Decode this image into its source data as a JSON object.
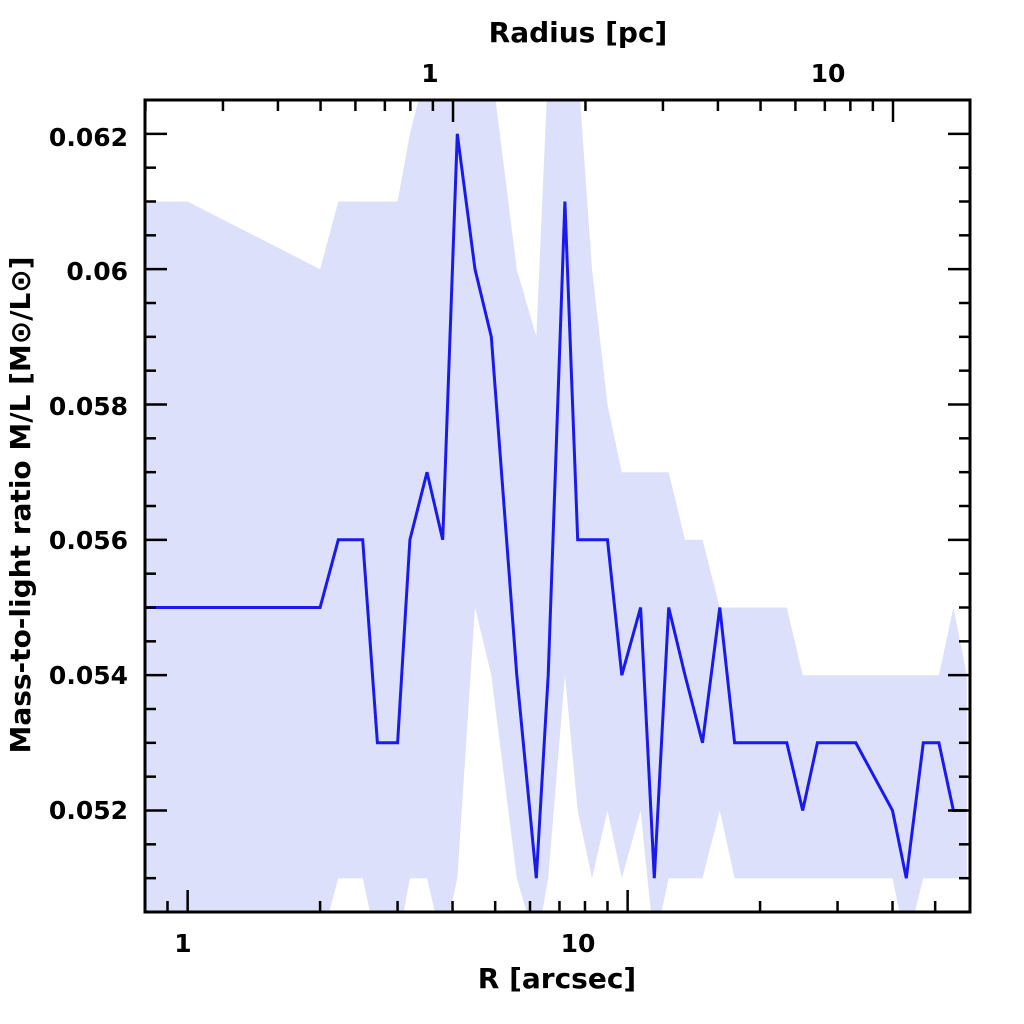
{
  "chart_data": {
    "type": "line",
    "xlabel": "R [arcsec]",
    "x2label": "Radius [pc]",
    "ylabel": "Mass-to-light ratio M/L [M⊙/L⊙]",
    "x_scale": "log",
    "xlim": [
      0.8,
      60
    ],
    "ylim": [
      0.0505,
      0.0625
    ],
    "x_tick_labels": [
      "1",
      "10"
    ],
    "x2_tick_labels": [
      "1",
      "10"
    ],
    "y_tick_labels": [
      "0.052",
      "0.054",
      "0.056",
      "0.058",
      "0.06",
      "0.062"
    ],
    "colors": {
      "line": "#1a1aee",
      "band": "#dde0fa"
    },
    "series": [
      {
        "x": [
          0.8,
          1.0,
          2.0,
          2.2,
          2.5,
          2.7,
          3.0,
          3.2,
          3.5,
          3.8,
          4.1,
          4.5,
          4.9,
          5.6,
          6.2,
          6.6,
          7.2,
          7.7,
          8.3,
          9.0,
          9.7,
          10.7,
          11.5,
          12.4,
          13.5,
          14.8,
          16.2,
          17.5,
          19.0,
          23.0,
          25.0,
          27.0,
          33.0,
          40.0,
          43.0,
          47.0,
          51.0,
          55.0,
          59.0
        ],
        "y": [
          0.055,
          0.055,
          0.055,
          0.056,
          0.056,
          0.053,
          0.053,
          0.056,
          0.057,
          0.056,
          0.062,
          0.06,
          0.059,
          0.054,
          0.051,
          0.054,
          0.061,
          0.056,
          0.056,
          0.056,
          0.054,
          0.055,
          0.051,
          0.055,
          0.054,
          0.053,
          0.055,
          0.053,
          0.053,
          0.053,
          0.052,
          0.053,
          0.053,
          0.052,
          0.051,
          0.053,
          0.053,
          0.052,
          0.052
        ],
        "upper": [
          0.061,
          0.061,
          0.06,
          0.061,
          0.061,
          0.061,
          0.061,
          0.062,
          0.063,
          0.063,
          0.063,
          0.063,
          0.063,
          0.06,
          0.059,
          0.063,
          0.063,
          0.063,
          0.06,
          0.058,
          0.057,
          0.057,
          0.057,
          0.057,
          0.056,
          0.056,
          0.055,
          0.055,
          0.055,
          0.055,
          0.054,
          0.054,
          0.054,
          0.054,
          0.054,
          0.054,
          0.054,
          0.055,
          0.054
        ],
        "lower": [
          0.05,
          0.05,
          0.05,
          0.051,
          0.051,
          0.05,
          0.05,
          0.051,
          0.051,
          0.05,
          0.051,
          0.055,
          0.054,
          0.051,
          0.05,
          0.051,
          0.054,
          0.052,
          0.051,
          0.052,
          0.051,
          0.052,
          0.05,
          0.051,
          0.051,
          0.051,
          0.052,
          0.051,
          0.051,
          0.051,
          0.051,
          0.051,
          0.051,
          0.051,
          0.05,
          0.051,
          0.051,
          0.051,
          0.051
        ]
      }
    ]
  }
}
